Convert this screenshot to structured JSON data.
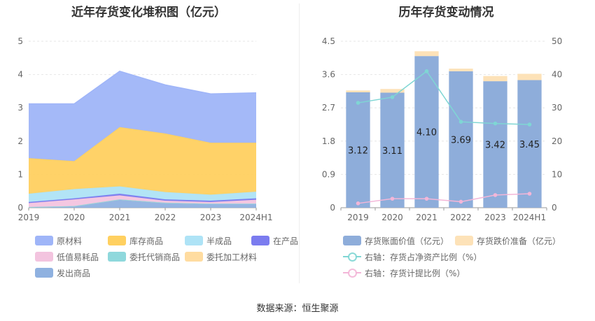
{
  "left_title": "近年存货变化堆积图（亿元）",
  "right_title": "历年存货变动情况",
  "source": "数据来源：恒生聚源",
  "chart_data": [
    {
      "type": "area",
      "title": "近年存货变化堆积图（亿元）",
      "categories": [
        "2019",
        "2020",
        "2021",
        "2022",
        "2023",
        "2024H1"
      ],
      "y_ticks": [
        "0",
        "1",
        "2",
        "3",
        "4",
        "5"
      ],
      "ylim": [
        0,
        5
      ],
      "stacked": true,
      "series": [
        {
          "name": "发出商品",
          "color": "#8fb1e0",
          "values": [
            0.02,
            0.05,
            0.25,
            0.15,
            0.12,
            0.12
          ]
        },
        {
          "name": "委托加工材料",
          "color": "#ffdca0",
          "values": [
            0.0,
            0.0,
            0.0,
            0.0,
            0.0,
            0.0
          ]
        },
        {
          "name": "委托代销商品",
          "color": "#8fd8dc",
          "values": [
            0.0,
            0.0,
            0.0,
            0.0,
            0.0,
            0.0
          ]
        },
        {
          "name": "低值易耗品",
          "color": "#f3c4df",
          "values": [
            0.12,
            0.2,
            0.12,
            0.06,
            0.05,
            0.12
          ]
        },
        {
          "name": "在产品",
          "color": "#7b7cef",
          "values": [
            0.03,
            0.03,
            0.05,
            0.04,
            0.04,
            0.04
          ]
        },
        {
          "name": "半成品",
          "color": "#aee3f6",
          "values": [
            0.25,
            0.28,
            0.22,
            0.22,
            0.18,
            0.2
          ]
        },
        {
          "name": "库存商品",
          "color": "#ffd060",
          "values": [
            1.07,
            0.84,
            1.78,
            1.76,
            1.56,
            1.47
          ]
        },
        {
          "name": "原材料",
          "color": "#9fb5f8",
          "values": [
            1.63,
            1.72,
            1.68,
            1.46,
            1.47,
            1.5
          ]
        }
      ],
      "legend": [
        "原材料",
        "库存商品",
        "半成品",
        "在产品",
        "低值易耗品",
        "委托代销商品",
        "委托加工材料",
        "发出商品"
      ]
    },
    {
      "type": "bar",
      "title": "历年存货变动情况",
      "categories": [
        "2019",
        "2020",
        "2021",
        "2022",
        "2023",
        "2024H1"
      ],
      "y_left_ticks": [
        "0",
        "0.9",
        "1.8",
        "2.7",
        "3.6",
        "4.5"
      ],
      "y_right_ticks": [
        "0",
        "10",
        "20",
        "30",
        "40",
        "50"
      ],
      "ylim_left": [
        0,
        4.5
      ],
      "ylim_right": [
        0,
        50
      ],
      "series": [
        {
          "name": "存货账面价值（亿元）",
          "color": "#8eadda",
          "axis": "left",
          "values": [
            3.12,
            3.11,
            4.1,
            3.69,
            3.42,
            3.45
          ],
          "labels": [
            "3.12",
            "3.11",
            "4.10",
            "3.69",
            "3.42",
            "3.45"
          ]
        },
        {
          "name": "存货跌价准备（亿元）",
          "color": "#fde2b8",
          "axis": "left",
          "values": [
            0.05,
            0.1,
            0.13,
            0.07,
            0.14,
            0.17
          ]
        },
        {
          "name": "右轴：存货占净资产比例（%）",
          "color": "#7fd6d4",
          "axis": "right",
          "type": "line",
          "values": [
            31.5,
            33.2,
            41.0,
            25.8,
            25.3,
            25.0
          ]
        },
        {
          "name": "右轴：存货计提比例（%）",
          "color": "#f3b6d8",
          "axis": "right",
          "type": "line",
          "values": [
            1.3,
            2.7,
            2.7,
            1.8,
            3.8,
            4.2
          ]
        }
      ]
    }
  ]
}
